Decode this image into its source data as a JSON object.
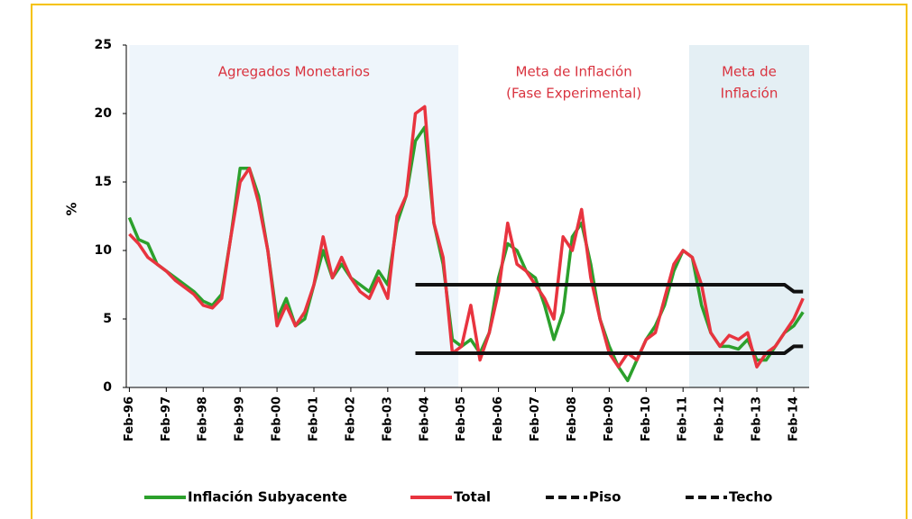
{
  "chart_data": {
    "type": "line",
    "ylabel": "%",
    "ylim": [
      0,
      25
    ],
    "yticks": [
      0,
      5,
      10,
      15,
      20,
      25
    ],
    "xlim": [
      "1996-01",
      "2014-07"
    ],
    "xticks": [
      {
        "value": "1996-02",
        "label": "Feb-96"
      },
      {
        "value": "1997-02",
        "label": "Feb-97"
      },
      {
        "value": "1998-02",
        "label": "Feb-98"
      },
      {
        "value": "1999-02",
        "label": "Feb-99"
      },
      {
        "value": "2000-02",
        "label": "Feb-00"
      },
      {
        "value": "2001-02",
        "label": "Feb-01"
      },
      {
        "value": "2002-02",
        "label": "Feb-02"
      },
      {
        "value": "2003-02",
        "label": "Feb-03"
      },
      {
        "value": "2004-02",
        "label": "Feb-04"
      },
      {
        "value": "2005-02",
        "label": "Feb-05"
      },
      {
        "value": "2006-02",
        "label": "Feb-06"
      },
      {
        "value": "2007-02",
        "label": "Feb-07"
      },
      {
        "value": "2008-02",
        "label": "Feb-08"
      },
      {
        "value": "2009-02",
        "label": "Feb-09"
      },
      {
        "value": "2010-02",
        "label": "Feb-10"
      },
      {
        "value": "2011-02",
        "label": "Feb-11"
      },
      {
        "value": "2012-02",
        "label": "Feb-12"
      },
      {
        "value": "2013-02",
        "label": "Feb-13"
      },
      {
        "value": "2014-02",
        "label": "Feb-14"
      }
    ],
    "regions": [
      {
        "lines": [
          "Agregados Monetarios"
        ],
        "start": "1996-02",
        "end": "2005-01",
        "color": "#eef5fb"
      },
      {
        "lines": [
          "Meta de Inflación",
          "(Fase Experimental)"
        ],
        "start": "2005-01",
        "end": "2011-04",
        "color": "#ffffff"
      },
      {
        "lines": [
          "Meta de",
          "Inflación"
        ],
        "start": "2011-04",
        "end": "2014-07",
        "color": "#e4eff4"
      }
    ],
    "x": [
      "1996-02",
      "1996-05",
      "1996-08",
      "1996-11",
      "1997-02",
      "1997-05",
      "1997-08",
      "1997-11",
      "1998-02",
      "1998-05",
      "1998-08",
      "1998-11",
      "1999-02",
      "1999-05",
      "1999-08",
      "1999-11",
      "2000-02",
      "2000-05",
      "2000-08",
      "2000-11",
      "2001-02",
      "2001-05",
      "2001-08",
      "2001-11",
      "2002-02",
      "2002-05",
      "2002-08",
      "2002-11",
      "2003-02",
      "2003-05",
      "2003-08",
      "2003-11",
      "2004-02",
      "2004-05",
      "2004-08",
      "2004-11",
      "2005-02",
      "2005-05",
      "2005-08",
      "2005-11",
      "2006-02",
      "2006-05",
      "2006-08",
      "2006-11",
      "2007-02",
      "2007-05",
      "2007-08",
      "2007-11",
      "2008-02",
      "2008-05",
      "2008-08",
      "2008-11",
      "2009-02",
      "2009-05",
      "2009-08",
      "2009-11",
      "2010-02",
      "2010-05",
      "2010-08",
      "2010-11",
      "2011-02",
      "2011-05",
      "2011-08",
      "2011-11",
      "2012-02",
      "2012-05",
      "2012-08",
      "2012-11",
      "2013-02",
      "2013-05",
      "2013-08",
      "2013-11",
      "2014-02",
      "2014-05"
    ],
    "series": [
      {
        "name": "Inflación Subyacente",
        "color": "#2ca02c",
        "dash": false,
        "values": [
          12.4,
          10.8,
          10.5,
          9,
          8.5,
          8,
          7.5,
          7,
          6.3,
          6,
          6.8,
          11,
          16,
          16,
          14,
          10,
          5,
          6.5,
          4.5,
          5,
          7.5,
          10,
          8,
          9,
          8,
          7.5,
          7,
          8.5,
          7.5,
          12,
          14,
          18,
          19,
          12,
          9,
          3.5,
          3,
          3.5,
          2.5,
          4,
          8,
          10.5,
          10,
          8.5,
          8,
          6,
          3.5,
          5.5,
          11,
          12,
          9,
          5,
          3,
          1.5,
          0.5,
          2,
          3.5,
          4.5,
          6,
          8.5,
          10,
          9.5,
          6,
          4,
          3,
          3,
          2.8,
          3.5,
          2,
          2,
          3,
          4,
          4.5,
          5.5
        ]
      },
      {
        "name": "Total",
        "color": "#e8343f",
        "dash": false,
        "values": [
          11.2,
          10.5,
          9.5,
          9,
          8.5,
          7.8,
          7.3,
          6.8,
          6,
          5.8,
          6.5,
          11,
          15,
          16,
          13.5,
          10,
          4.5,
          6,
          4.5,
          5.5,
          7.5,
          11,
          8,
          9.5,
          8,
          7,
          6.5,
          8,
          6.5,
          12.5,
          14,
          20,
          20.5,
          12,
          9.5,
          2.5,
          3,
          6,
          2,
          4,
          7,
          12,
          9,
          8.5,
          7.5,
          6.5,
          5,
          11,
          10,
          13,
          8,
          5,
          2.5,
          1.5,
          2.5,
          2,
          3.5,
          4,
          6.5,
          9,
          10,
          9.5,
          7.5,
          4,
          3,
          3.8,
          3.5,
          4,
          1.5,
          2.5,
          3,
          4,
          5,
          6.5
        ]
      },
      {
        "name": "Piso",
        "color": "#111111",
        "dash": true,
        "values": [
          null,
          null,
          null,
          null,
          null,
          null,
          null,
          null,
          null,
          null,
          null,
          null,
          null,
          null,
          null,
          null,
          null,
          null,
          null,
          null,
          null,
          null,
          null,
          null,
          null,
          null,
          null,
          null,
          null,
          null,
          null,
          2.5,
          2.5,
          2.5,
          2.5,
          2.5,
          2.5,
          2.5,
          2.5,
          2.5,
          2.5,
          2.5,
          2.5,
          2.5,
          2.5,
          2.5,
          2.5,
          2.5,
          2.5,
          2.5,
          2.5,
          2.5,
          2.5,
          2.5,
          2.5,
          2.5,
          2.5,
          2.5,
          2.5,
          2.5,
          2.5,
          2.5,
          2.5,
          2.5,
          2.5,
          2.5,
          2.5,
          2.5,
          2.5,
          2.5,
          2.5,
          2.5,
          3,
          3
        ]
      },
      {
        "name": "Techo",
        "color": "#111111",
        "dash": true,
        "values": [
          null,
          null,
          null,
          null,
          null,
          null,
          null,
          null,
          null,
          null,
          null,
          null,
          null,
          null,
          null,
          null,
          null,
          null,
          null,
          null,
          null,
          null,
          null,
          null,
          null,
          null,
          null,
          null,
          null,
          null,
          null,
          7.5,
          7.5,
          7.5,
          7.5,
          7.5,
          7.5,
          7.5,
          7.5,
          7.5,
          7.5,
          7.5,
          7.5,
          7.5,
          7.5,
          7.5,
          7.5,
          7.5,
          7.5,
          7.5,
          7.5,
          7.5,
          7.5,
          7.5,
          7.5,
          7.5,
          7.5,
          7.5,
          7.5,
          7.5,
          7.5,
          7.5,
          7.5,
          7.5,
          7.5,
          7.5,
          7.5,
          7.5,
          7.5,
          7.5,
          7.5,
          7.5,
          7,
          7
        ]
      }
    ]
  }
}
